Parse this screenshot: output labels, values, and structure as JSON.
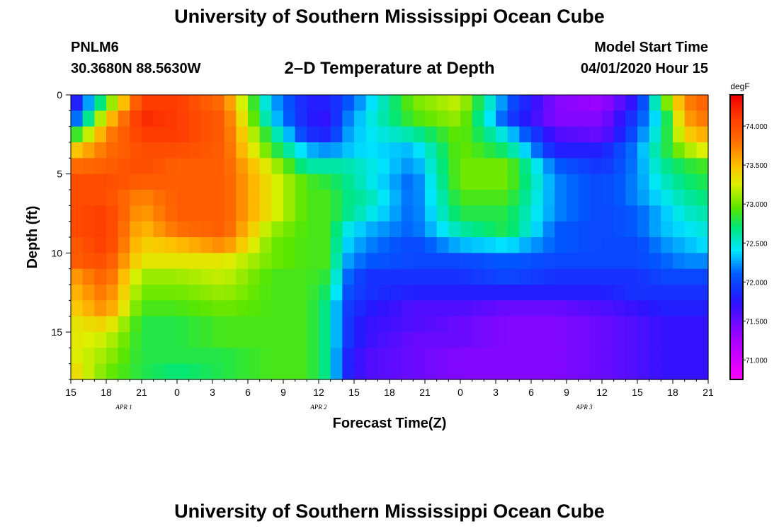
{
  "header": {
    "title": "University of Southern Mississippi Ocean Cube",
    "station": "PNLM6",
    "coords": "30.3680N 88.5630W",
    "plot_title": "2–D Temperature at Depth",
    "start_label": "Model Start Time",
    "start_value": "04/01/2020 Hour 15"
  },
  "footer": {
    "title": "University of Southern Mississippi Ocean Cube"
  },
  "chart_data": {
    "type": "heatmap",
    "xlabel": "Forecast Time(Z)",
    "ylabel": "Depth (ft)",
    "x_ticks": [
      "15",
      "18",
      "21",
      "0",
      "3",
      "6",
      "9",
      "12",
      "15",
      "18",
      "21",
      "0",
      "3",
      "6",
      "9",
      "12",
      "15",
      "18",
      "21"
    ],
    "date_labels": [
      {
        "label": "APR 1",
        "hour_index": 4.5
      },
      {
        "label": "APR 2",
        "hour_index": 21
      },
      {
        "label": "APR 3",
        "hour_index": 43.5
      }
    ],
    "hours_total": 54,
    "y_ticks": [
      0,
      5,
      10,
      15
    ],
    "ylim": [
      0,
      18
    ],
    "y_inverted": true,
    "colorbar": {
      "unit": "degF",
      "ticks": [
        "71.000",
        "71.500",
        "72.000",
        "72.500",
        "73.000",
        "73.500",
        "74.000"
      ],
      "range": [
        70.75,
        74.4
      ]
    },
    "key_profiles": [
      {
        "hour_index": 0,
        "temps": [
          71.6,
          71.9,
          72.7,
          73.4,
          73.8,
          74.0,
          74.0,
          74.0,
          74.0,
          73.9,
          73.9,
          73.6,
          73.5,
          73.4,
          73.3,
          73.3,
          73.3,
          73.4
        ]
      },
      {
        "hour_index": 3,
        "temps": [
          72.9,
          73.4,
          73.7,
          73.8,
          73.9,
          74.0,
          74.0,
          74.1,
          74.1,
          74.1,
          74.0,
          73.9,
          73.8,
          73.7,
          73.4,
          73.2,
          73.1,
          73.0
        ]
      },
      {
        "hour_index": 6,
        "temps": [
          74.1,
          74.2,
          74.1,
          74.0,
          74.0,
          73.9,
          73.7,
          73.6,
          73.5,
          73.4,
          73.3,
          73.1,
          73.0,
          72.9,
          72.8,
          72.8,
          72.8,
          72.8
        ]
      },
      {
        "hour_index": 9,
        "temps": [
          74.1,
          74.1,
          74.1,
          74.0,
          73.9,
          73.9,
          73.9,
          73.9,
          73.8,
          73.5,
          73.3,
          73.1,
          73.0,
          72.9,
          72.8,
          72.8,
          72.8,
          72.7
        ]
      },
      {
        "hour_index": 13,
        "temps": [
          73.8,
          73.9,
          73.9,
          73.9,
          73.9,
          73.9,
          73.9,
          73.9,
          73.9,
          73.7,
          73.3,
          73.2,
          73.1,
          73.0,
          72.9,
          72.9,
          72.8,
          72.8
        ]
      },
      {
        "hour_index": 17,
        "temps": [
          72.3,
          72.4,
          72.7,
          72.9,
          73.2,
          73.3,
          73.3,
          73.3,
          73.1,
          73.0,
          73.0,
          72.9,
          72.9,
          72.9,
          72.9,
          72.9,
          72.9,
          72.9
        ]
      },
      {
        "hour_index": 20,
        "temps": [
          71.8,
          71.8,
          71.9,
          72.3,
          72.6,
          72.9,
          72.9,
          72.9,
          72.9,
          72.9,
          72.9,
          72.9,
          72.9,
          72.9,
          72.9,
          72.9,
          72.9,
          72.9
        ]
      },
      {
        "hour_index": 22,
        "temps": [
          71.8,
          71.7,
          71.8,
          72.2,
          72.6,
          72.8,
          72.9,
          72.9,
          72.9,
          72.9,
          72.9,
          72.8,
          72.7,
          72.6,
          72.6,
          72.6,
          72.6,
          72.6
        ]
      },
      {
        "hour_index": 23,
        "temps": [
          72.0,
          72.1,
          72.2,
          72.3,
          72.6,
          72.7,
          72.7,
          72.7,
          72.5,
          72.4,
          72.3,
          72.2,
          72.1,
          72.0,
          72.0,
          72.0,
          71.9,
          71.9
        ]
      },
      {
        "hour_index": 25,
        "temps": [
          72.3,
          72.4,
          72.4,
          72.4,
          72.5,
          72.5,
          72.6,
          72.5,
          72.3,
          72.2,
          72.1,
          71.9,
          71.9,
          71.8,
          71.7,
          71.7,
          71.6,
          71.6
        ]
      },
      {
        "hour_index": 29,
        "temps": [
          73.0,
          72.9,
          72.6,
          72.3,
          72.2,
          72.1,
          72.1,
          72.1,
          72.1,
          72.0,
          72.0,
          71.9,
          71.8,
          71.6,
          71.6,
          71.5,
          71.5,
          71.5
        ]
      },
      {
        "hour_index": 33,
        "temps": [
          73.2,
          73.1,
          73.0,
          73.0,
          73.0,
          73.0,
          72.9,
          72.8,
          72.6,
          72.3,
          72.0,
          71.9,
          71.8,
          71.6,
          71.5,
          71.5,
          71.4,
          71.4
        ]
      },
      {
        "hour_index": 37,
        "temps": [
          72.1,
          72.0,
          72.4,
          72.7,
          73.0,
          73.0,
          72.9,
          72.8,
          72.8,
          72.4,
          72.1,
          72.0,
          71.8,
          71.5,
          71.4,
          71.4,
          71.4,
          71.4
        ]
      },
      {
        "hour_index": 41,
        "temps": [
          71.4,
          71.4,
          71.6,
          71.8,
          72.1,
          72.2,
          72.2,
          72.2,
          72.1,
          72.1,
          72.0,
          71.9,
          71.8,
          71.5,
          71.4,
          71.4,
          71.4,
          71.4
        ]
      },
      {
        "hour_index": 45,
        "temps": [
          71.3,
          71.4,
          71.5,
          71.8,
          71.9,
          72.0,
          72.0,
          72.0,
          72.0,
          72.0,
          72.0,
          71.9,
          71.8,
          71.6,
          71.5,
          71.5,
          71.5,
          71.5
        ]
      },
      {
        "hour_index": 48,
        "temps": [
          71.8,
          72.0,
          72.1,
          72.2,
          72.2,
          72.2,
          72.2,
          72.1,
          72.1,
          72.0,
          72.0,
          71.9,
          71.9,
          71.7,
          71.6,
          71.6,
          71.6,
          71.6
        ]
      },
      {
        "hour_index": 50,
        "temps": [
          72.8,
          72.5,
          72.6,
          72.7,
          72.6,
          72.5,
          72.4,
          72.3,
          72.3,
          72.2,
          72.1,
          72.0,
          71.9,
          71.8,
          71.7,
          71.7,
          71.7,
          71.7
        ]
      },
      {
        "hour_index": 52,
        "temps": [
          73.7,
          73.6,
          73.4,
          73.1,
          72.8,
          72.7,
          72.6,
          72.5,
          72.4,
          72.3,
          72.2,
          72.0,
          71.9,
          71.8,
          71.7,
          71.7,
          71.7,
          71.7
        ]
      },
      {
        "hour_index": 54,
        "temps": [
          73.9,
          73.8,
          73.6,
          73.3,
          72.9,
          72.8,
          72.7,
          72.6,
          72.5,
          72.4,
          72.2,
          72.0,
          71.9,
          71.8,
          71.7,
          71.7,
          71.7,
          71.7
        ]
      }
    ]
  }
}
